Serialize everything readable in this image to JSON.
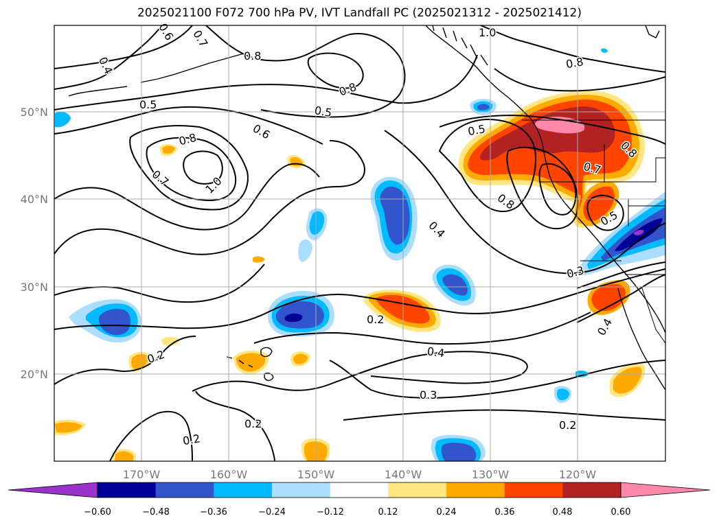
{
  "title": "2025021100 F072 700 hPa PV, IVT Landfall PC (2025021312 - 2025021412)",
  "lon_ticks": [
    "170°W",
    "160°W",
    "150°W",
    "140°W",
    "130°W",
    "120°W"
  ],
  "lat_ticks": [
    "50°N",
    "40°N",
    "30°N",
    "20°N"
  ],
  "contour_labels": [
    "0.4",
    "0.6",
    "0.7",
    "0.8",
    "1.0",
    "0.8",
    "0.8",
    "0.8",
    "0.5",
    "0.5",
    "0.5",
    "0.8",
    "0.6",
    "0.7",
    "1.0",
    "0.4",
    "0.3",
    "0.2",
    "0.4",
    "0.3",
    "0.2",
    "0.2",
    "0.2",
    "0.2",
    "0.5",
    "0.4",
    "0.8",
    "0.7"
  ],
  "colorbar": {
    "ticks": [
      "−0.60",
      "−0.48",
      "−0.36",
      "−0.24",
      "−0.12",
      "0.12",
      "0.24",
      "0.36",
      "0.48",
      "0.60"
    ],
    "colors": [
      "#9933cc",
      "#000099",
      "#3355cc",
      "#00bbff",
      "#aaddff",
      "#ffffff",
      "#ffe680",
      "#ffaa00",
      "#ff4400",
      "#b22222",
      "#ff88aa"
    ]
  }
}
